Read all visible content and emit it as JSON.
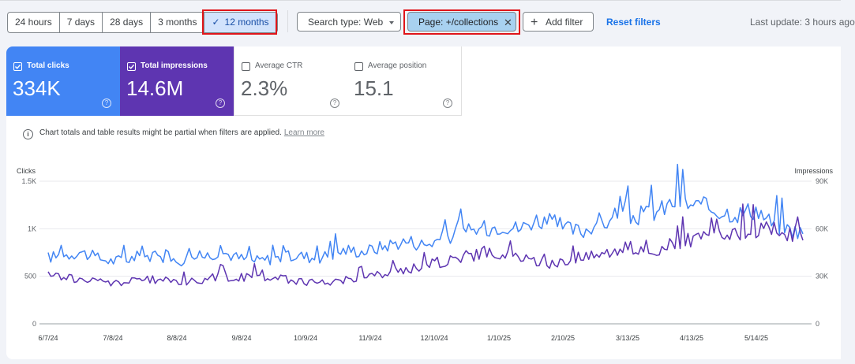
{
  "date_range": {
    "options": [
      "24 hours",
      "7 days",
      "28 days",
      "3 months",
      "12 months"
    ],
    "selected": "12 months"
  },
  "filters": {
    "search_type": "Search type: Web",
    "page": "Page: +/collections",
    "add_filter": "Add filter",
    "reset": "Reset filters"
  },
  "last_update": "Last update: 3 hours ago",
  "metrics": [
    {
      "label": "Total clicks",
      "value": "334K",
      "checked": true,
      "color": "#4285f4"
    },
    {
      "label": "Total impressions",
      "value": "14.6M",
      "checked": true,
      "color": "#5e35b1"
    },
    {
      "label": "Average CTR",
      "value": "2.3%",
      "checked": false
    },
    {
      "label": "Average position",
      "value": "15.1",
      "checked": false
    }
  ],
  "notice": {
    "text": "Chart totals and table results might be partial when filters are applied.",
    "link": "Learn more"
  },
  "chart_data": {
    "type": "line",
    "left_axis": {
      "label": "Clicks",
      "ticks": [
        "0",
        "500",
        "1K",
        "1.5K"
      ],
      "range": [
        0,
        1500
      ]
    },
    "right_axis": {
      "label": "Impressions",
      "ticks": [
        "0",
        "30K",
        "60K",
        "90K"
      ],
      "range": [
        0,
        90000
      ]
    },
    "x_labels": [
      "6/7/24",
      "7/8/24",
      "8/8/24",
      "9/8/24",
      "10/9/24",
      "11/9/24",
      "12/10/24",
      "1/10/25",
      "2/10/25",
      "3/13/25",
      "4/13/25",
      "5/14/25"
    ],
    "grid": true,
    "series": [
      {
        "axis": "left",
        "color": "#4285f4",
        "values": [
          700,
          720,
          760,
          700,
          660,
          680,
          720,
          700,
          650,
          690,
          720,
          760,
          700,
          660,
          680,
          700,
          720,
          690,
          730,
          780,
          760,
          800,
          850,
          870,
          830,
          900,
          940,
          980,
          1010,
          1040,
          1000,
          1100,
          1070,
          1000,
          970,
          1080,
          1060,
          1120,
          1150,
          1200,
          1300,
          1240,
          1220,
          1180,
          1160,
          1210,
          1060,
          1000,
          960
        ]
      },
      {
        "axis": "left",
        "color": "#5e35b1",
        "values": [
          510,
          500,
          460,
          450,
          430,
          440,
          470,
          460,
          450,
          440,
          470,
          500,
          480,
          500,
          490,
          470,
          450,
          430,
          440,
          470,
          490,
          510,
          540,
          580,
          620,
          650,
          700,
          720,
          760,
          720,
          700,
          650,
          620,
          680,
          700,
          740,
          780,
          800,
          760,
          780,
          860,
          880,
          920,
          900,
          960,
          980,
          1000,
          960,
          920
        ]
      }
    ]
  }
}
